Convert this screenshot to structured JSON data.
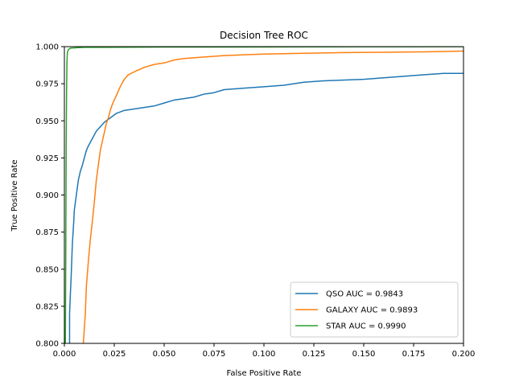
{
  "chart_data": {
    "type": "line",
    "title": "Decision Tree ROC",
    "xlabel": "False Positive Rate",
    "ylabel": "True Positive Rate",
    "xlim": [
      0.0,
      0.2
    ],
    "ylim": [
      0.8,
      1.0
    ],
    "xticks": [
      "0.000",
      "0.025",
      "0.050",
      "0.075",
      "0.100",
      "0.125",
      "0.150",
      "0.175",
      "0.200"
    ],
    "yticks": [
      "0.800",
      "0.825",
      "0.850",
      "0.875",
      "0.900",
      "0.925",
      "0.950",
      "0.975",
      "1.000"
    ],
    "grid": false,
    "legend_position": "bottom-right",
    "series": [
      {
        "name": "QSO AUC = 0.9843",
        "color": "#1f77b4",
        "x": [
          0.0026,
          0.0026,
          0.003,
          0.0034,
          0.004,
          0.0046,
          0.005,
          0.006,
          0.007,
          0.008,
          0.009,
          0.01,
          0.011,
          0.012,
          0.014,
          0.016,
          0.018,
          0.02,
          0.022,
          0.024,
          0.026,
          0.03,
          0.035,
          0.04,
          0.045,
          0.05,
          0.055,
          0.06,
          0.065,
          0.07,
          0.075,
          0.08,
          0.09,
          0.1,
          0.11,
          0.12,
          0.13,
          0.15,
          0.16,
          0.17,
          0.18,
          0.19,
          0.2
        ],
        "y": [
          0.8,
          0.82,
          0.833,
          0.845,
          0.867,
          0.88,
          0.89,
          0.9,
          0.91,
          0.916,
          0.92,
          0.925,
          0.93,
          0.933,
          0.938,
          0.943,
          0.946,
          0.949,
          0.951,
          0.953,
          0.955,
          0.957,
          0.958,
          0.959,
          0.96,
          0.962,
          0.964,
          0.965,
          0.966,
          0.968,
          0.969,
          0.971,
          0.972,
          0.973,
          0.974,
          0.976,
          0.977,
          0.978,
          0.979,
          0.98,
          0.981,
          0.982,
          0.982
        ]
      },
      {
        "name": "GALAXY AUC = 0.9893",
        "color": "#ff7f0e",
        "x": [
          0.0095,
          0.0105,
          0.011,
          0.012,
          0.013,
          0.014,
          0.015,
          0.016,
          0.017,
          0.018,
          0.019,
          0.02,
          0.021,
          0.022,
          0.023,
          0.024,
          0.025,
          0.026,
          0.027,
          0.028,
          0.03,
          0.032,
          0.035,
          0.04,
          0.045,
          0.05,
          0.055,
          0.06,
          0.07,
          0.08,
          0.09,
          0.1,
          0.12,
          0.14,
          0.16,
          0.18,
          0.2
        ],
        "y": [
          0.8,
          0.82,
          0.838,
          0.855,
          0.87,
          0.882,
          0.895,
          0.91,
          0.92,
          0.93,
          0.936,
          0.942,
          0.948,
          0.952,
          0.957,
          0.961,
          0.964,
          0.967,
          0.97,
          0.973,
          0.978,
          0.981,
          0.983,
          0.986,
          0.988,
          0.989,
          0.991,
          0.992,
          0.993,
          0.994,
          0.9945,
          0.995,
          0.9955,
          0.996,
          0.9962,
          0.9965,
          0.997
        ]
      },
      {
        "name": "STAR AUC = 0.9990",
        "color": "#2ca02c",
        "x": [
          0.0005,
          0.0007,
          0.0009,
          0.0011,
          0.0013,
          0.0015,
          0.002,
          0.003,
          0.005,
          0.01,
          0.05,
          0.1,
          0.15,
          0.2
        ],
        "y": [
          0.8,
          0.86,
          0.93,
          0.97,
          0.99,
          0.996,
          0.998,
          0.999,
          0.9992,
          0.9995,
          0.9997,
          0.9998,
          0.9999,
          1.0
        ]
      }
    ]
  }
}
